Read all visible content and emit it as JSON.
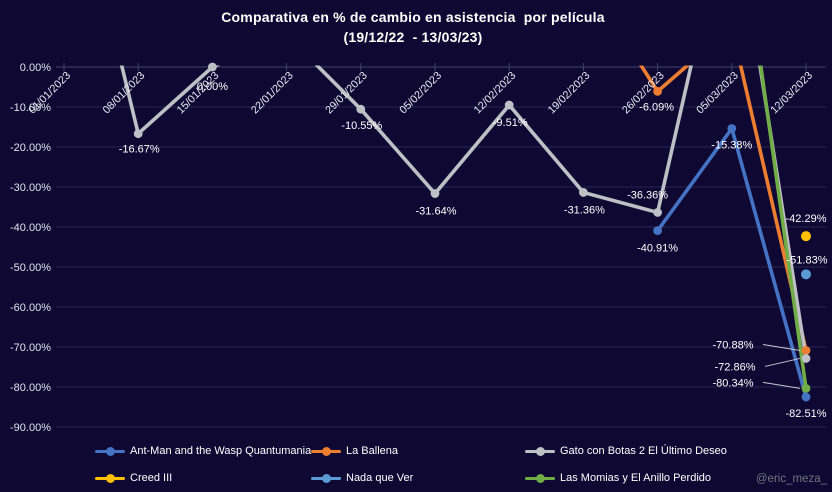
{
  "title": {
    "line1": "Comparativa en % de cambio en asistencia  por película",
    "line2": "(19/12/22  - 13/03/23)"
  },
  "watermark": "@eric_meza_",
  "colors": {
    "background": "#0e0832",
    "gridline": "#2a2452",
    "axis_line": "#44406e",
    "tick_label": "#e2e2ec",
    "data_label": "#ffffff",
    "leader_line": "#c8c8d0"
  },
  "chart_data": {
    "type": "line",
    "title": "Comparativa en % de cambio en asistencia por película (19/12/22 - 13/03/23)",
    "xlabel": "",
    "ylabel": "",
    "grid": true,
    "legend_position": "bottom",
    "x_axis": {
      "label_rotation_deg": 45
    },
    "y_axis": {
      "min": -90,
      "max": 0,
      "step": 10,
      "format": "percent",
      "tick_labels": [
        "0.00%",
        "-10.00%",
        "-20.00%",
        "-30.00%",
        "-40.00%",
        "-50.00%",
        "-60.00%",
        "-70.00%",
        "-80.00%",
        "-90.00%"
      ]
    },
    "categories": [
      "01/01/2023",
      "08/01/2023",
      "15/01/2023",
      "22/01/2023",
      "29/01/2023",
      "05/02/2023",
      "12/02/2023",
      "19/02/2023",
      "26/02/2023",
      "05/03/2023",
      "12/03/2023"
    ],
    "series": [
      {
        "name": "Ant-Man and the Wasp Quantumania",
        "color": "#4472C4",
        "points": [
          {
            "category": "26/02/2023",
            "value": -40.91,
            "label": "-40.91%",
            "label_dx": 0,
            "label_dy": 17
          },
          {
            "category": "05/03/2023",
            "value": -15.38,
            "label": "-15.38%",
            "label_dx": 0,
            "label_dy": 16
          },
          {
            "category": "12/03/2023",
            "value": -82.51,
            "label": "-82.51%",
            "label_dx": 0,
            "label_dy": 16
          }
        ]
      },
      {
        "name": "La Ballena",
        "color": "#ED7D31",
        "points": [
          {
            "category": "19/02/2023",
            "value": 23,
            "clipped": true
          },
          {
            "category": "26/02/2023",
            "value": -6.09,
            "label": "-6.09%",
            "label_dx": -1,
            "label_dy": 15
          },
          {
            "category": "05/03/2023",
            "value": 10,
            "clipped": true
          },
          {
            "category": "12/03/2023",
            "value": -70.88,
            "label": "-70.88%",
            "label_dx": -73,
            "label_dy": -6,
            "leader": true
          }
        ]
      },
      {
        "name": "Gato con Botas 2 El Último Deseo",
        "color": "#BFBFC6",
        "points": [
          {
            "category": "01/01/2023",
            "value": 60,
            "clipped": true
          },
          {
            "category": "08/01/2023",
            "value": -16.67,
            "label": "-16.67%",
            "label_dx": 1,
            "label_dy": 15
          },
          {
            "category": "15/01/2023",
            "value": 0.0,
            "label": "0.00%",
            "label_dx": 0,
            "label_dy": 19
          },
          {
            "category": "22/01/2023",
            "value": 8,
            "clipped": true
          },
          {
            "category": "29/01/2023",
            "value": -10.55,
            "label": "-10.55%",
            "label_dx": 1,
            "label_dy": 16
          },
          {
            "category": "05/02/2023",
            "value": -31.64,
            "label": "-31.64%",
            "label_dx": 1,
            "label_dy": 17
          },
          {
            "category": "12/02/2023",
            "value": -9.51,
            "label": "-9.51%",
            "label_dx": 1,
            "label_dy": 17
          },
          {
            "category": "19/02/2023",
            "value": -31.36,
            "label": "-31.36%",
            "label_dx": 1,
            "label_dy": 17
          },
          {
            "category": "26/02/2023",
            "value": -36.36,
            "label": "-36.36%",
            "label_dx": -10,
            "label_dy": -18
          },
          {
            "category": "05/03/2023",
            "value": 45,
            "clipped": true
          },
          {
            "category": "12/03/2023",
            "value": -72.86,
            "label": "-72.86%",
            "label_dx": -71,
            "label_dy": 8,
            "leader": true
          }
        ]
      },
      {
        "name": "Creed III",
        "color": "#FFC000",
        "points": [
          {
            "category": "12/03/2023",
            "value": -42.29,
            "label": "-42.29%",
            "label_dx": 0,
            "label_dy": -18
          }
        ]
      },
      {
        "name": "Nada que Ver",
        "color": "#5B9BD5",
        "points": [
          {
            "category": "12/03/2023",
            "value": -51.83,
            "label": "-51.83%",
            "label_dx": 1,
            "label_dy": -15
          }
        ]
      },
      {
        "name": "Las Momias y El Anillo Perdido",
        "color": "#70AD47",
        "points": [
          {
            "category": "05/03/2023",
            "value": 52,
            "clipped": true
          },
          {
            "category": "12/03/2023",
            "value": -80.34,
            "label": "-80.34%",
            "label_dx": -73,
            "label_dy": -6,
            "leader": true
          }
        ]
      }
    ],
    "note": "clipped:true points are above the 0% axis and cut off by the plot area; their values are visual estimates"
  }
}
